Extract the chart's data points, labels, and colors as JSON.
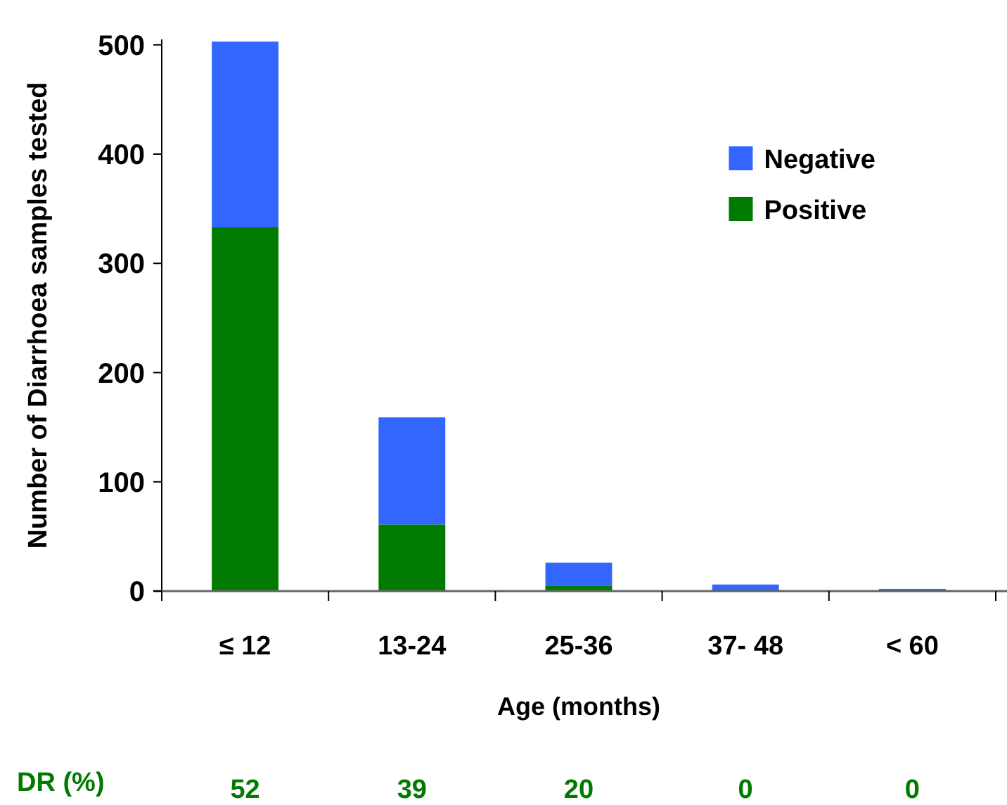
{
  "chart_data": {
    "type": "bar",
    "stacked": true,
    "xlabel": "Age (months)",
    "ylabel": "Number of Diarrhoea samples tested",
    "categories": [
      "≤ 12",
      "13-24",
      "25-36",
      "37- 48",
      "< 60"
    ],
    "series": [
      {
        "name": "Positive",
        "color": "#007a00",
        "values": [
          333,
          61,
          5,
          0,
          0
        ]
      },
      {
        "name": "Negative",
        "color": "#3366ff",
        "values": [
          170,
          98,
          21,
          6,
          2
        ]
      }
    ],
    "ylim": [
      0,
      505
    ],
    "yticks": [
      0,
      100,
      200,
      300,
      400,
      500
    ],
    "legend": "top right",
    "annotations": [
      "DR (%)",
      "52",
      "39",
      "20",
      "0",
      "0"
    ]
  }
}
